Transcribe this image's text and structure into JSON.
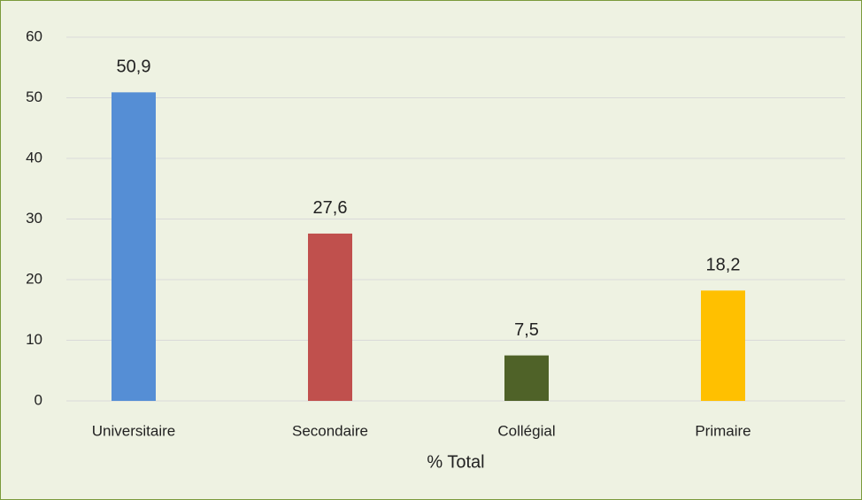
{
  "chart_data": {
    "type": "bar",
    "x_label": "% Total",
    "categories": [
      "Universitaire",
      "Secondaire",
      "Collégial",
      "Primaire"
    ],
    "values": [
      50.9,
      27.6,
      7.5,
      18.2
    ],
    "value_labels": [
      "50,9",
      "27,6",
      "7,5",
      "18,2"
    ],
    "colors": [
      "#558ED5",
      "#C0504D",
      "#4F6228",
      "#FFC000"
    ],
    "ylim": [
      0,
      60
    ],
    "yticks": [
      0,
      10,
      20,
      30,
      40,
      50,
      60
    ],
    "grid": true
  }
}
